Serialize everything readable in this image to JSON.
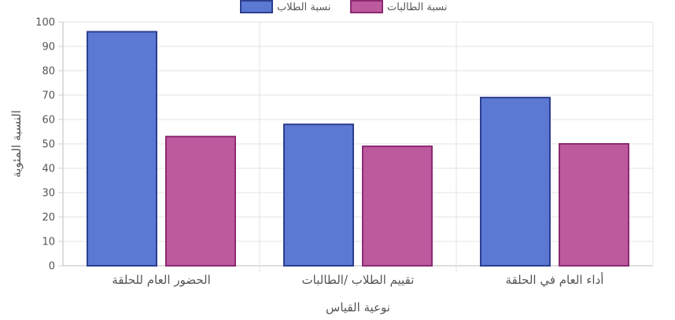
{
  "chart_data": {
    "type": "bar",
    "title": "",
    "xlabel": "نوعية القياس",
    "ylabel": "النسبة المئوية",
    "ylim": [
      0,
      100
    ],
    "yticks": [
      0,
      10,
      20,
      30,
      40,
      50,
      60,
      70,
      80,
      90,
      100
    ],
    "grid": true,
    "legend": "top-center",
    "categories": [
      "الحضور العام للحلقة",
      "تقييم الطلاب /الطالبات",
      "أداء العام في الحلقة"
    ],
    "series": [
      {
        "name": "نسبة الطلاب",
        "values": [
          96,
          58,
          69
        ],
        "color": "#5b79d2",
        "border": "#2c3e8f"
      },
      {
        "name": "نسبة الطالبات",
        "values": [
          53,
          49,
          50
        ],
        "color": "#bd5a9e",
        "border": "#8c2a72"
      }
    ]
  }
}
